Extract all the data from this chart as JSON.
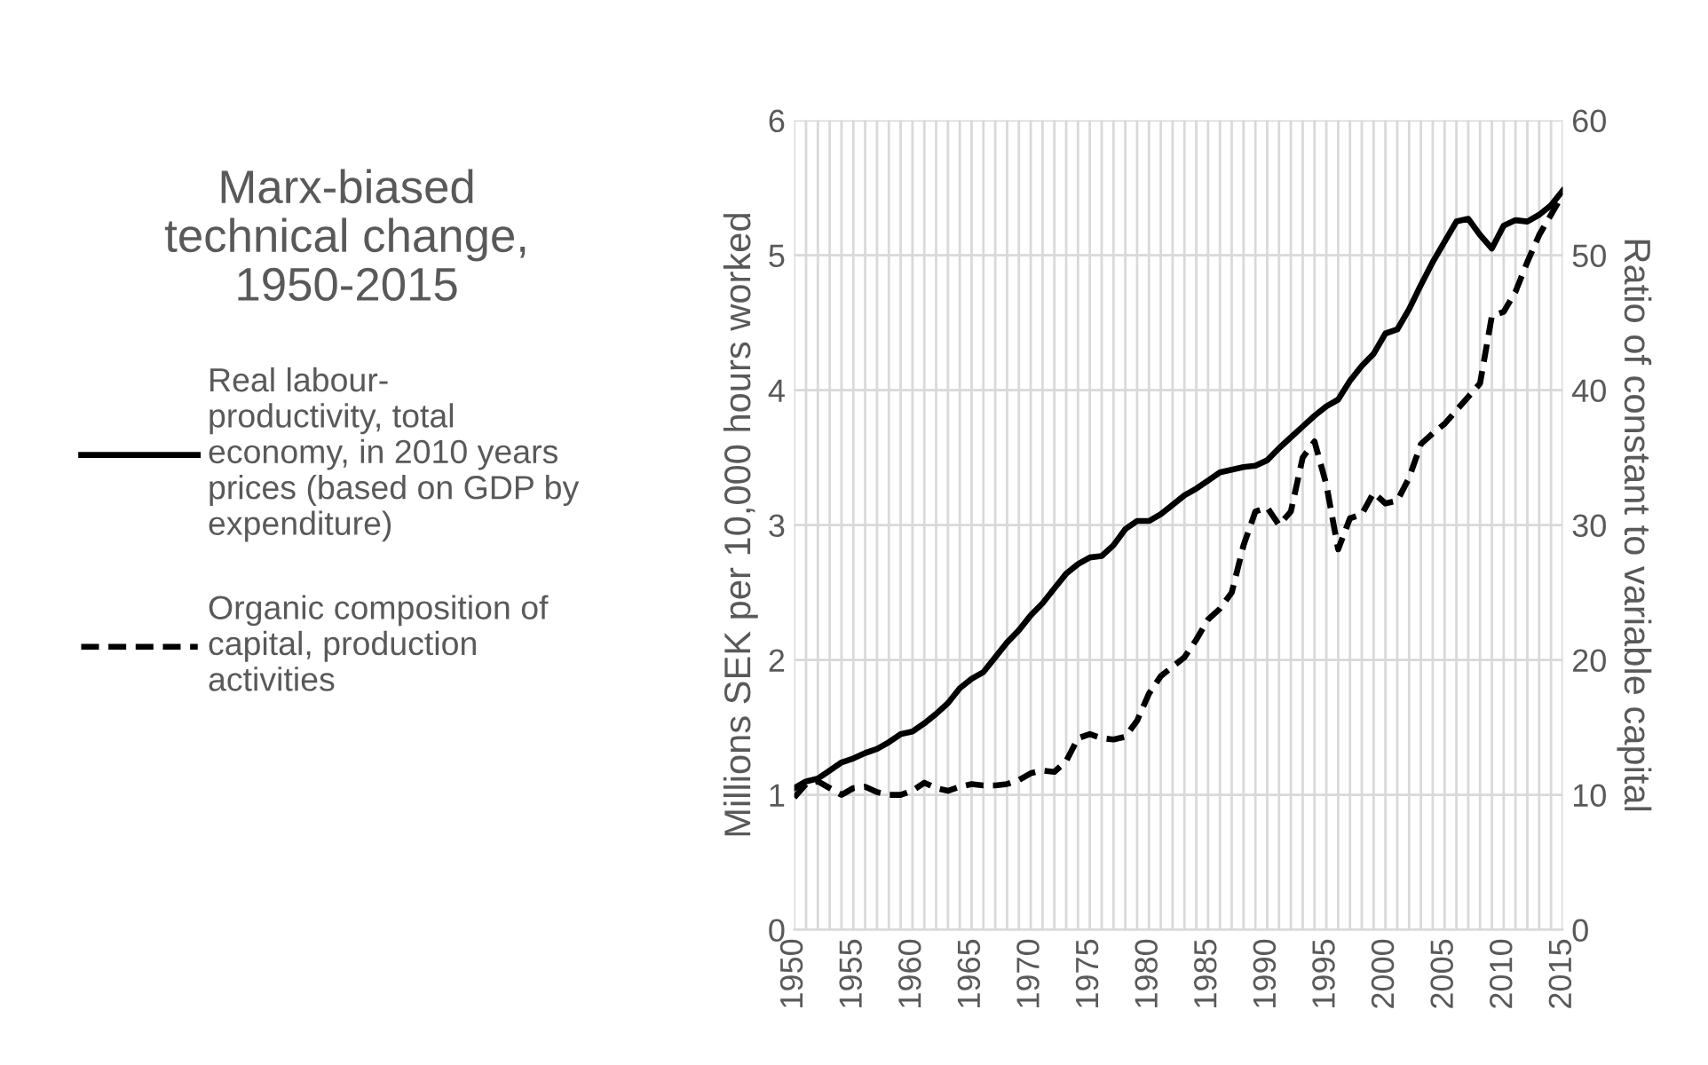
{
  "chart_data": {
    "type": "line",
    "title": "Marx-biased\ntechnical change,\n1950-2015",
    "ylabel": "Millions SEK per 10,000 hours worked",
    "y2label": "Ratio of constant to variable capital",
    "categories": [
      "1950",
      null,
      null,
      null,
      null,
      "1955",
      null,
      null,
      null,
      null,
      "1960",
      null,
      null,
      null,
      null,
      "1965",
      null,
      null,
      null,
      null,
      "1970",
      null,
      null,
      null,
      null,
      "1975",
      null,
      null,
      null,
      null,
      "1980",
      null,
      null,
      null,
      null,
      "1985",
      null,
      null,
      null,
      null,
      "1990",
      null,
      null,
      null,
      null,
      "1995",
      null,
      null,
      null,
      null,
      "2000",
      null,
      null,
      null,
      null,
      "2005",
      null,
      null,
      null,
      null,
      "2010",
      null,
      null,
      null,
      null,
      "2015"
    ],
    "series": [
      {
        "name": "Real labour-\nproductivity, total\neconomy, in 2010 years\nprices (based on GDP by\nexpenditure)",
        "color": "#000000",
        "line_style": "solid",
        "values": [
          1.05,
          1.1,
          1.12,
          1.18,
          1.24,
          1.27,
          1.31,
          1.34,
          1.39,
          1.45,
          1.47,
          1.53,
          1.6,
          1.68,
          1.79,
          1.86,
          1.91,
          2.02,
          2.13,
          2.22,
          2.33,
          2.42,
          2.53,
          2.64,
          2.71,
          2.76,
          2.77,
          2.85,
          2.97,
          3.03,
          3.03,
          3.08,
          3.15,
          3.22,
          3.27,
          3.33,
          3.39,
          3.41,
          3.43,
          3.44,
          3.48,
          3.57,
          3.65,
          3.73,
          3.81,
          3.88,
          3.93,
          4.07,
          4.18,
          4.27,
          4.42,
          4.45,
          4.6,
          4.78,
          4.95,
          5.1,
          5.25,
          5.27,
          5.15,
          5.05,
          5.22,
          5.26,
          5.25,
          5.3,
          5.37,
          5.48
        ]
      },
      {
        "name": "Organic composition of\ncapital, production\nactivities",
        "color": "#000000",
        "line_style": "dashed",
        "axis": "y2",
        "values": [
          9.8,
          10.8,
          11,
          10.5,
          10,
          10.5,
          10.6,
          10.2,
          10,
          10,
          10.3,
          10.9,
          10.5,
          10.3,
          10.6,
          10.8,
          10.7,
          10.7,
          10.8,
          11.1,
          11.6,
          11.8,
          11.7,
          12.5,
          14.2,
          14.5,
          14.2,
          14.1,
          14.3,
          15.5,
          17.5,
          18.8,
          19.5,
          20.2,
          21.5,
          23,
          23.8,
          25,
          28.5,
          31,
          31.3,
          30,
          31,
          35,
          36.2,
          33,
          28.2,
          30.5,
          30.8,
          32.4,
          31.6,
          31.8,
          33.5,
          36,
          36.8,
          37.5,
          38.5,
          39.5,
          40.5,
          45.5,
          45.8,
          47.3,
          49.5,
          51.5,
          53,
          54.5
        ]
      }
    ],
    "ylim": [
      0,
      6
    ],
    "yticks": [
      0,
      1,
      2,
      3,
      4,
      5,
      6
    ],
    "y2lim": [
      0,
      60
    ],
    "y2ticks": [
      0,
      10,
      20,
      30,
      40,
      50,
      60
    ],
    "grid": true,
    "legend": "left"
  }
}
